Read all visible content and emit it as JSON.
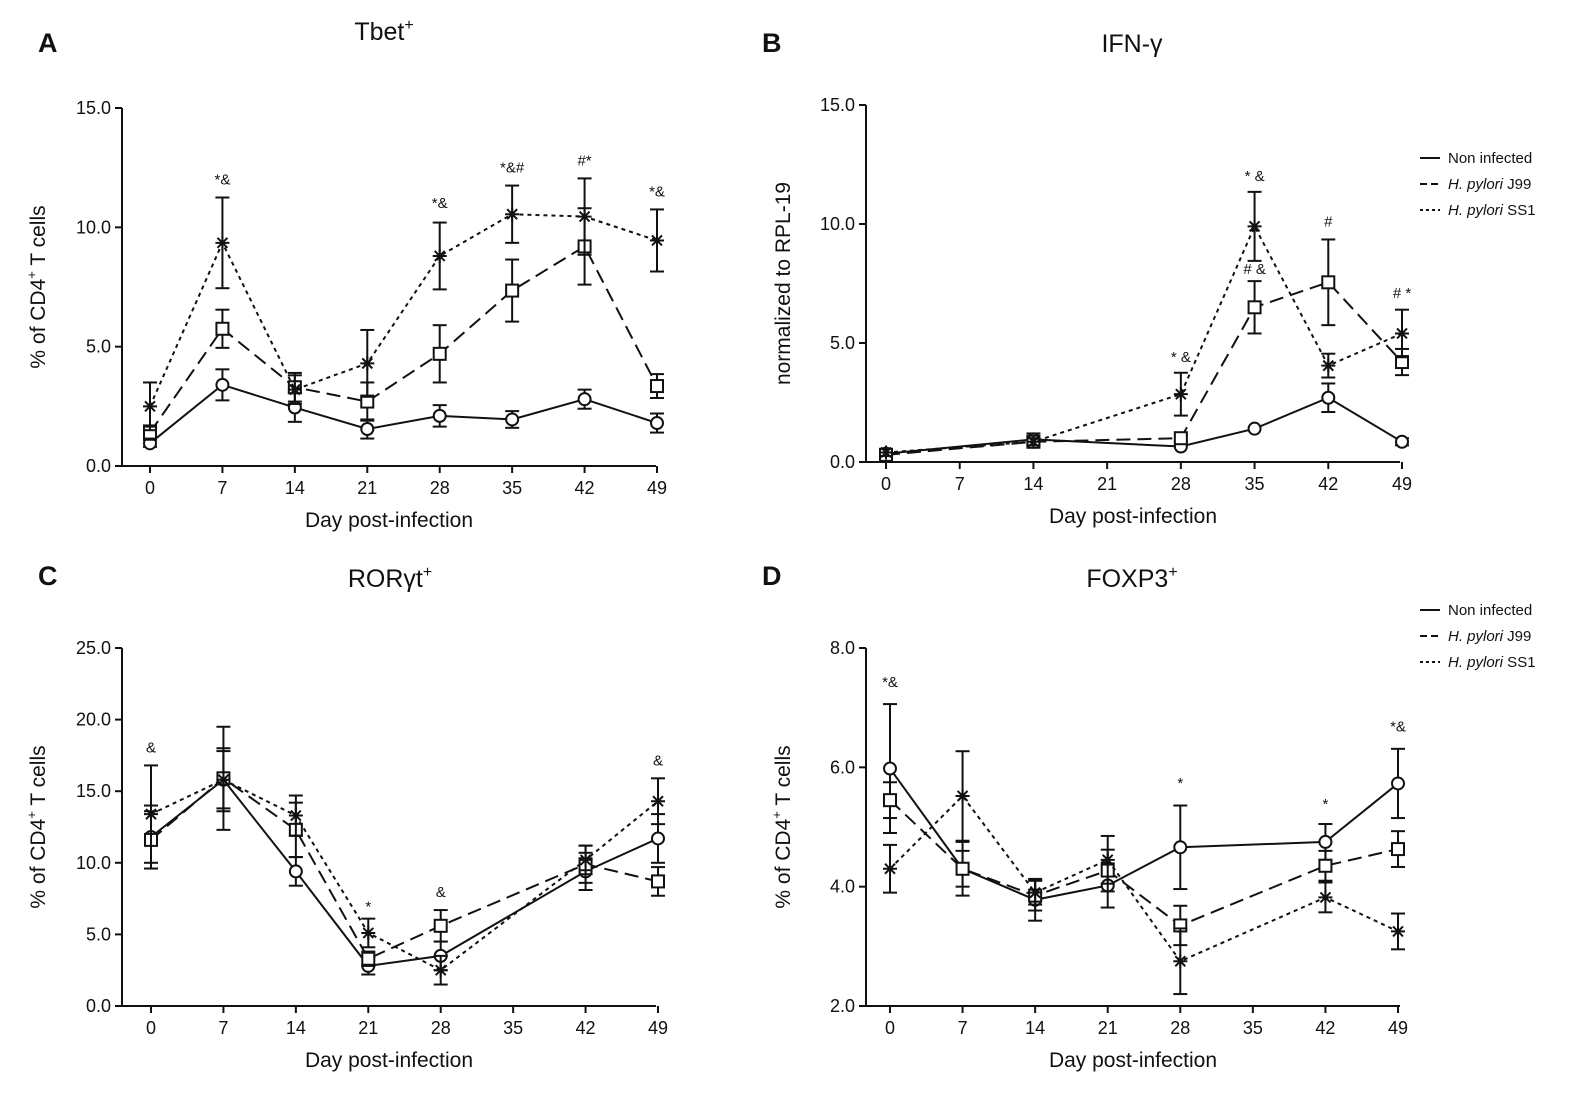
{
  "chart_data": [
    {
      "panel": "A",
      "type": "line",
      "title": "Tbet",
      "title_sup": "+",
      "ylabel": "% of CD4+ T cells",
      "xlabel": "Day post-infection",
      "ylim": [
        0,
        15
      ],
      "yticks": [
        "0.0",
        "5.0",
        "10.0",
        "15.0"
      ],
      "x": [
        0,
        7,
        14,
        21,
        28,
        35,
        42,
        49
      ],
      "series": [
        {
          "name": "Non infected",
          "marker": "circle",
          "dash": "solid",
          "points": [
            [
              0,
              0.95,
              0.15
            ],
            [
              7,
              3.4,
              0.65
            ],
            [
              14,
              2.45,
              0.6
            ],
            [
              21,
              1.55,
              0.4
            ],
            [
              28,
              2.1,
              0.45
            ],
            [
              35,
              1.95,
              0.35
            ],
            [
              42,
              2.8,
              0.4
            ],
            [
              49,
              1.8,
              0.4
            ]
          ]
        },
        {
          "name": "H. pylori J99",
          "marker": "square",
          "dash": "dashed",
          "points": [
            [
              0,
              1.4,
              0.3
            ],
            [
              7,
              5.75,
              0.8
            ],
            [
              14,
              3.3,
              0.6
            ],
            [
              21,
              2.7,
              0.8
            ],
            [
              28,
              4.7,
              1.2
            ],
            [
              35,
              7.35,
              1.3
            ],
            [
              42,
              9.2,
              1.6
            ],
            [
              49,
              3.35,
              0.5
            ]
          ]
        },
        {
          "name": "H. pylori SS1",
          "marker": "star",
          "dash": "dotted",
          "points": [
            [
              0,
              2.5,
              1.0
            ],
            [
              7,
              9.35,
              1.9
            ],
            [
              14,
              3.2,
              0.6
            ],
            [
              21,
              4.3,
              1.4
            ],
            [
              28,
              8.8,
              1.4
            ],
            [
              35,
              10.55,
              1.2
            ],
            [
              42,
              10.45,
              1.6
            ],
            [
              49,
              9.45,
              1.3
            ]
          ]
        }
      ],
      "annotations": [
        {
          "x": 7,
          "y": 11.8,
          "text": "*&"
        },
        {
          "x": 28,
          "y": 10.8,
          "text": "*&"
        },
        {
          "x": 35,
          "y": 12.3,
          "text": "*&#"
        },
        {
          "x": 42,
          "y": 12.6,
          "text": "#*"
        },
        {
          "x": 49,
          "y": 11.3,
          "text": "*&"
        }
      ]
    },
    {
      "panel": "B",
      "type": "line",
      "title": "IFN-γ",
      "ylabel": "normalized to RPL-19",
      "xlabel": "Day post-infection",
      "ylim": [
        0,
        15
      ],
      "yticks": [
        "0.0",
        "5.0",
        "10.0",
        "15.0"
      ],
      "x": [
        0,
        7,
        14,
        21,
        28,
        35,
        42,
        49
      ],
      "series": [
        {
          "name": "Non infected",
          "marker": "circle",
          "dash": "solid",
          "points": [
            [
              0,
              0.35,
              0.1
            ],
            [
              14,
              0.95,
              0.25
            ],
            [
              28,
              0.65,
              0
            ],
            [
              35,
              1.4,
              0
            ],
            [
              42,
              2.7,
              0.6
            ],
            [
              49,
              0.85,
              0.15
            ]
          ]
        },
        {
          "name": "H. pylori J99",
          "marker": "square",
          "dash": "dashed",
          "points": [
            [
              0,
              0.3,
              0.1
            ],
            [
              14,
              0.85,
              0.15
            ],
            [
              28,
              1.0,
              0.15
            ],
            [
              35,
              6.5,
              1.1
            ],
            [
              42,
              7.55,
              1.8
            ],
            [
              49,
              4.2,
              0.55
            ]
          ]
        },
        {
          "name": "H. pylori SS1",
          "marker": "star",
          "dash": "dotted",
          "points": [
            [
              0,
              0.4,
              0.15
            ],
            [
              14,
              0.85,
              0.15
            ],
            [
              28,
              2.85,
              0.9
            ],
            [
              35,
              9.9,
              1.45
            ],
            [
              42,
              4.05,
              0.5
            ],
            [
              49,
              5.4,
              1.0
            ]
          ]
        }
      ],
      "annotations": [
        {
          "x": 28,
          "y": 4.2,
          "text": "* &"
        },
        {
          "x": 35,
          "y": 11.8,
          "text": "* &"
        },
        {
          "x": 35,
          "y": 7.9,
          "text": "# &"
        },
        {
          "x": 42,
          "y": 9.9,
          "text": "#"
        },
        {
          "x": 49,
          "y": 6.9,
          "text": "# *"
        }
      ],
      "legend": [
        "Non infected",
        "H. pylori J99",
        "H. pylori SS1"
      ],
      "legend_position": "top-right"
    },
    {
      "panel": "C",
      "type": "line",
      "title": "RORγt",
      "title_sup": "+",
      "ylabel": "% of CD4+ T cells",
      "xlabel": "Day post-infection",
      "ylim": [
        0,
        25
      ],
      "yticks": [
        "0.0",
        "5.0",
        "10.0",
        "15.0",
        "20.0",
        "25.0"
      ],
      "x": [
        0,
        7,
        14,
        21,
        28,
        35,
        42,
        49
      ],
      "series": [
        {
          "name": "Non infected",
          "marker": "circle",
          "dash": "solid",
          "points": [
            [
              0,
              11.8,
              2.2
            ],
            [
              7,
              15.8,
              2.2
            ],
            [
              14,
              9.4,
              1.0
            ],
            [
              21,
              2.8,
              0.6
            ],
            [
              28,
              3.5,
              1.0
            ],
            [
              42,
              9.4,
              1.3
            ],
            [
              49,
              11.7,
              1.7
            ]
          ]
        },
        {
          "name": "H. pylori J99",
          "marker": "square",
          "dash": "dashed",
          "points": [
            [
              0,
              11.6,
              2.0
            ],
            [
              7,
              15.9,
              3.6
            ],
            [
              14,
              12.3,
              1.9
            ],
            [
              21,
              3.3,
              0.5
            ],
            [
              28,
              5.6,
              1.1
            ],
            [
              42,
              9.9,
              1.3
            ],
            [
              49,
              8.7,
              1.0
            ]
          ]
        },
        {
          "name": "H. pylori SS1",
          "marker": "star",
          "dash": "dotted",
          "points": [
            [
              0,
              13.4,
              3.4
            ],
            [
              7,
              15.8,
              2.0
            ],
            [
              14,
              13.3,
              1.4
            ],
            [
              21,
              5.1,
              1.0
            ],
            [
              28,
              2.5,
              1.0
            ],
            [
              42,
              10.2,
              1.0
            ],
            [
              49,
              14.3,
              1.6
            ]
          ]
        }
      ],
      "annotations": [
        {
          "x": 0,
          "y": 17.7,
          "text": "&"
        },
        {
          "x": 21,
          "y": 6.6,
          "text": "*"
        },
        {
          "x": 28,
          "y": 7.6,
          "text": "&"
        },
        {
          "x": 49,
          "y": 16.8,
          "text": "&"
        }
      ]
    },
    {
      "panel": "D",
      "type": "line",
      "title": "FOXP3",
      "title_sup": "+",
      "ylabel": "% of CD4+ T cells",
      "xlabel": "Day post-infection",
      "ylim": [
        2,
        8
      ],
      "yticks": [
        "2.0",
        "4.0",
        "6.0",
        "8.0"
      ],
      "x": [
        0,
        7,
        14,
        21,
        28,
        35,
        42,
        49
      ],
      "series": [
        {
          "name": "Non infected",
          "marker": "circle",
          "dash": "solid",
          "points": [
            [
              0,
              5.98,
              1.08
            ],
            [
              7,
              4.3,
              0.45
            ],
            [
              14,
              3.78,
              0.35
            ],
            [
              21,
              4.02,
              0.37
            ],
            [
              28,
              4.66,
              0.7
            ],
            [
              42,
              4.75,
              0.3
            ],
            [
              49,
              5.73,
              0.58
            ]
          ]
        },
        {
          "name": "H. pylori J99",
          "marker": "square",
          "dash": "dashed",
          "points": [
            [
              0,
              5.45,
              0.3
            ],
            [
              7,
              4.3,
              0.3
            ],
            [
              14,
              3.85,
              0.25
            ],
            [
              21,
              4.27,
              0.35
            ],
            [
              28,
              3.35,
              0.33
            ],
            [
              42,
              4.35,
              0.25
            ],
            [
              49,
              4.63,
              0.3
            ]
          ]
        },
        {
          "name": "H. pylori SS1",
          "marker": "star",
          "dash": "dotted",
          "points": [
            [
              0,
              4.3,
              0.4
            ],
            [
              7,
              5.52,
              0.75
            ],
            [
              14,
              3.9,
              0.2
            ],
            [
              21,
              4.45,
              0.4
            ],
            [
              28,
              2.75,
              0.55
            ],
            [
              42,
              3.82,
              0.25
            ],
            [
              49,
              3.25,
              0.3
            ]
          ]
        }
      ],
      "annotations": [
        {
          "x": 0,
          "y": 7.35,
          "text": "*&"
        },
        {
          "x": 28,
          "y": 5.65,
          "text": "*"
        },
        {
          "x": 42,
          "y": 5.3,
          "text": "*"
        },
        {
          "x": 49,
          "y": 6.6,
          "text": "*&"
        }
      ],
      "legend": [
        "Non infected",
        "H. pylori J99",
        "H. pylori SS1"
      ],
      "legend_position": "top-right"
    }
  ]
}
